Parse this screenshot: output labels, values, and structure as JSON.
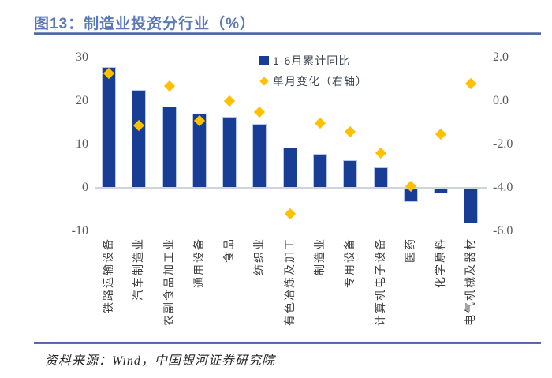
{
  "header": {
    "title": "图13：制造业投资分行业（%）"
  },
  "footer": {
    "source": "资料来源：Wind，中国银河证券研究院"
  },
  "colors": {
    "title_blue": "#5b79b7",
    "rule_blue": "#44619f",
    "bar_blue": "#173e94",
    "diamond_gold": "#ffc000",
    "axis_gray": "#c9c9c9",
    "tick_text": "#595959"
  },
  "chart_data": {
    "type": "bar",
    "title": "制造业投资分行业（%）",
    "categories": [
      "铁路运输设备",
      "汽车制造业",
      "农副食品加工业",
      "通用设备",
      "食品",
      "纺织业",
      "有色冶炼及加工",
      "制造业",
      "专用设备",
      "计算机电子设备",
      "医药",
      "化学原料",
      "电气机械及器材"
    ],
    "series": [
      {
        "name": "1-6月累计同比",
        "type": "bar",
        "axis": "left",
        "color": "#173e94",
        "values": [
          27.9,
          22.6,
          18.7,
          17.1,
          16.3,
          14.8,
          9.3,
          7.8,
          6.4,
          4.7,
          -3.2,
          -1.3,
          -8.1
        ]
      },
      {
        "name": "单月变化（右轴）",
        "type": "scatter",
        "marker": "diamond",
        "axis": "right",
        "color": "#ffc000",
        "values": [
          1.3,
          -1.1,
          0.7,
          -0.9,
          0.0,
          -0.5,
          -5.2,
          -1.0,
          -1.4,
          -2.4,
          -3.9,
          -1.5,
          0.8
        ]
      }
    ],
    "left_axis": {
      "min": -10,
      "max": 30,
      "ticks": [
        "30",
        "20",
        "10",
        "0",
        "-10"
      ]
    },
    "right_axis": {
      "min": -6.0,
      "max": 2.0,
      "ticks": [
        "2.0",
        "0.0",
        "-2.0",
        "-4.0",
        "-6.0"
      ]
    },
    "legend_position": "top-right-inside",
    "grid": false,
    "xlabel": "",
    "ylabel": ""
  }
}
